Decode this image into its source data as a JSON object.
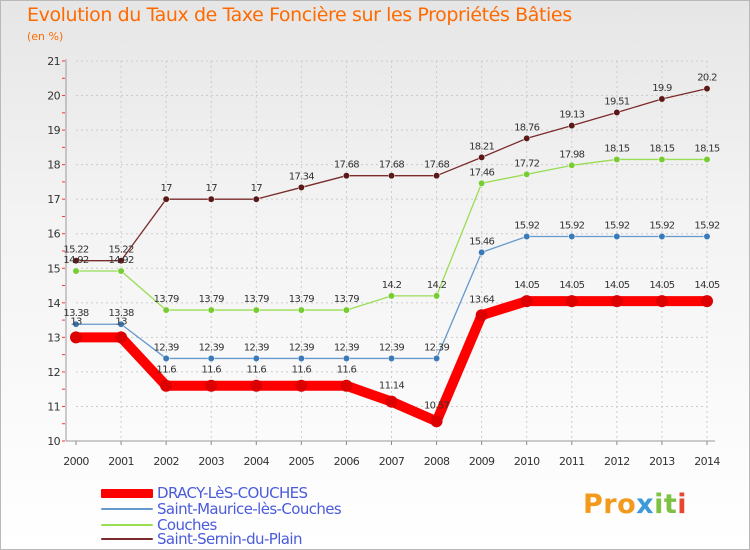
{
  "header": {
    "title": "Evolution du Taux de Taxe Foncière sur les Propriétés Bâties",
    "unit": "(en %)"
  },
  "chart_data": {
    "type": "line",
    "title": "Evolution du Taux de Taxe Foncière sur les Propriétés Bâties",
    "ylabel": "(en %)",
    "xlabel": "",
    "x": [
      "2000",
      "2001",
      "2002",
      "2003",
      "2004",
      "2005",
      "2006",
      "2007",
      "2008",
      "2009",
      "2010",
      "2011",
      "2012",
      "2013",
      "2014"
    ],
    "ylim": [
      10,
      21
    ],
    "yticks": [
      10,
      11,
      12,
      13,
      14,
      15,
      16,
      17,
      18,
      19,
      20,
      21
    ],
    "grid": true,
    "legend_position": "bottom-left",
    "series": [
      {
        "name": "Saint-Sernin-du-Plain",
        "color": "#7a2b2b",
        "marker": "#5a1818",
        "values": [
          15.22,
          15.22,
          17,
          17,
          17,
          17.34,
          17.68,
          17.68,
          17.68,
          18.21,
          18.76,
          19.13,
          19.51,
          19.9,
          20.2
        ],
        "labels": [
          "15.22",
          "15.22",
          "17",
          "17",
          "17",
          "17.34",
          "17.68",
          "17.68",
          "17.68",
          "18.21",
          "18.76",
          "19.13",
          "19.51",
          "19.9",
          "20.2"
        ]
      },
      {
        "name": "Couches",
        "color": "#99dd55",
        "marker": "#77cc33",
        "values": [
          14.92,
          14.92,
          13.79,
          13.79,
          13.79,
          13.79,
          13.79,
          14.2,
          14.2,
          17.46,
          17.72,
          17.98,
          18.15,
          18.15,
          18.15
        ],
        "labels": [
          "14.92",
          "14.92",
          "13.79",
          "13.79",
          "13.79",
          "13.79",
          "13.79",
          "14.2",
          "14.2",
          "17.46",
          "17.72",
          "17.98",
          "18.15",
          "18.15",
          "18.15"
        ]
      },
      {
        "name": "Saint-Maurice-lès-Couches",
        "color": "#6699cc",
        "marker": "#3a7ab8",
        "values": [
          13.38,
          13.38,
          12.39,
          12.39,
          12.39,
          12.39,
          12.39,
          12.39,
          12.39,
          15.46,
          15.92,
          15.92,
          15.92,
          15.92,
          15.92
        ],
        "labels": [
          "13.38",
          "13.38",
          "12.39",
          "12.39",
          "12.39",
          "12.39",
          "12.39",
          "12.39",
          "12.39",
          "15.46",
          "15.92",
          "15.92",
          "15.92",
          "15.92",
          "15.92"
        ]
      },
      {
        "name": "DRACY-LèS-COUCHES",
        "color": "#ff0000",
        "marker": "#dd0000",
        "values": [
          13,
          13,
          11.6,
          11.6,
          11.6,
          11.6,
          11.6,
          11.14,
          10.57,
          13.64,
          14.05,
          14.05,
          14.05,
          14.05,
          14.05
        ],
        "labels": [
          "13",
          "13",
          "11.6",
          "11.6",
          "11.6",
          "11.6",
          "11.6",
          "11.14",
          "10.57",
          "13.64",
          "14.05",
          "14.05",
          "14.05",
          "14.05",
          "14.05"
        ]
      }
    ],
    "legend": [
      {
        "name": "DRACY-LèS-COUCHES",
        "color": "#ff0000"
      },
      {
        "name": "Saint-Maurice-lès-Couches",
        "color": "#6699cc"
      },
      {
        "name": "Couches",
        "color": "#99dd55"
      },
      {
        "name": "Saint-Sernin-du-Plain",
        "color": "#7a2b2b"
      }
    ]
  },
  "logo": {
    "p1": "Pro",
    "p2": "x",
    "p3": "it",
    "p4": "i"
  }
}
